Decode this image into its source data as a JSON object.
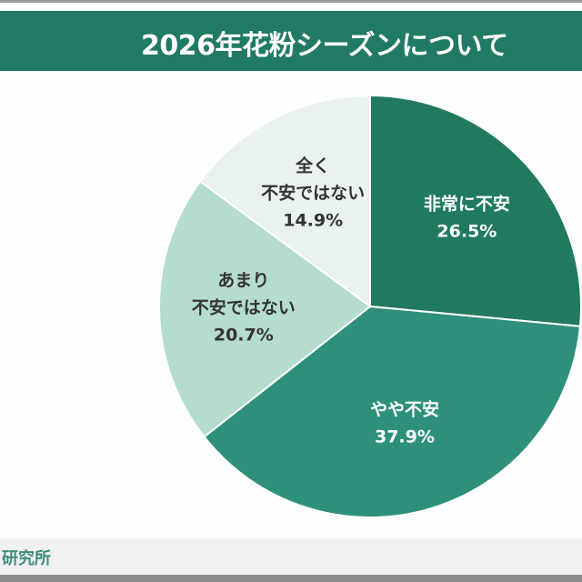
{
  "header": {
    "title": "2026年花粉シーズンについて"
  },
  "footer": {
    "source": "研究所"
  },
  "chart_data": {
    "type": "pie",
    "title": "2026年花粉シーズンについて",
    "start": "top",
    "direction": "clockwise",
    "slices": [
      {
        "label": [
          "非常に不安"
        ],
        "value": 26.5,
        "value_label": "26.5%",
        "color": "#217a60",
        "text_color": "#ffffff"
      },
      {
        "label": [
          "やや不安"
        ],
        "value": 37.9,
        "value_label": "37.9%",
        "color": "#2e907a",
        "text_color": "#ffffff"
      },
      {
        "label": [
          "あまり",
          "不安ではない"
        ],
        "value": 20.7,
        "value_label": "20.7%",
        "color": "#b4dccf",
        "text_color": "#333333"
      },
      {
        "label": [
          "全く",
          "不安ではない"
        ],
        "value": 14.9,
        "value_label": "14.9%",
        "color": "#e9f2ef",
        "text_color": "#333333"
      }
    ]
  }
}
